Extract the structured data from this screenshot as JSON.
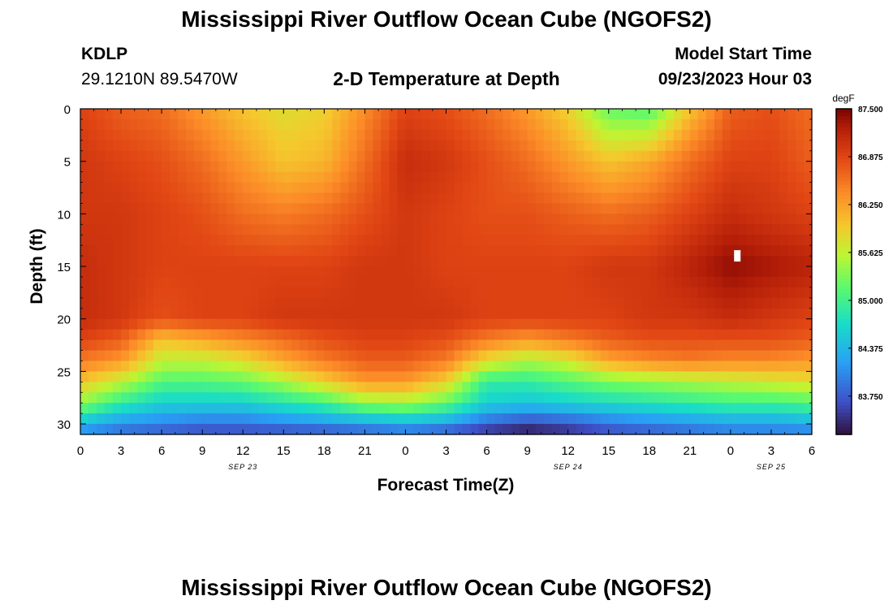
{
  "page": {
    "title_top": "Mississippi River Outflow Ocean Cube (NGOFS2)",
    "title_bottom": "Mississippi River Outflow Ocean Cube (NGOFS2)",
    "station_id": "KDLP",
    "station_coords": "29.1210N  89.5470W",
    "subtitle": "2-D Temperature at Depth",
    "model_start_label": "Model Start Time",
    "model_start_value": "09/23/2023 Hour 03"
  },
  "chart_data": {
    "type": "heatmap",
    "title": "2-D Temperature at Depth",
    "xlabel": "Forecast Time(Z)",
    "ylabel": "Depth (ft)",
    "x_range_hours": [
      0,
      54
    ],
    "y_range_ft": [
      0,
      31
    ],
    "x_ticks": [
      {
        "hour": 0,
        "label": "0"
      },
      {
        "hour": 3,
        "label": "3"
      },
      {
        "hour": 6,
        "label": "6"
      },
      {
        "hour": 9,
        "label": "9"
      },
      {
        "hour": 12,
        "label": "12"
      },
      {
        "hour": 15,
        "label": "15"
      },
      {
        "hour": 18,
        "label": "18"
      },
      {
        "hour": 21,
        "label": "21"
      },
      {
        "hour": 24,
        "label": "0"
      },
      {
        "hour": 27,
        "label": "3"
      },
      {
        "hour": 30,
        "label": "6"
      },
      {
        "hour": 33,
        "label": "9"
      },
      {
        "hour": 36,
        "label": "12"
      },
      {
        "hour": 39,
        "label": "15"
      },
      {
        "hour": 42,
        "label": "18"
      },
      {
        "hour": 45,
        "label": "21"
      },
      {
        "hour": 48,
        "label": "0"
      },
      {
        "hour": 51,
        "label": "3"
      },
      {
        "hour": 54,
        "label": "6"
      }
    ],
    "date_labels": [
      {
        "hour": 12,
        "label": "SEP 23"
      },
      {
        "hour": 36,
        "label": "SEP 24"
      },
      {
        "hour": 51,
        "label": "SEP 25"
      }
    ],
    "y_ticks": [
      0,
      5,
      10,
      15,
      20,
      25,
      30
    ],
    "colorbar": {
      "unit": "degF",
      "min": 83.25,
      "max": 87.5,
      "tick_values": [
        87.5,
        86.875,
        86.25,
        85.625,
        85.0,
        84.375,
        83.75
      ],
      "tick_labels": [
        "87.500",
        "86.875",
        "86.250",
        "85.625",
        "85.000",
        "84.375",
        "83.750"
      ]
    },
    "grid_hours": [
      0,
      3,
      6,
      9,
      12,
      15,
      18,
      21,
      24,
      27,
      30,
      33,
      36,
      39,
      42,
      45,
      48,
      51,
      54
    ],
    "grid_depths": [
      0,
      5,
      10,
      15,
      20,
      22,
      24,
      26,
      28,
      30,
      31
    ],
    "values_degF": [
      [
        86.9,
        86.7,
        86.6,
        86.3,
        86.0,
        85.8,
        85.9,
        86.4,
        86.9,
        86.8,
        86.6,
        86.3,
        85.9,
        85.2,
        85.1,
        86.0,
        86.7,
        86.8,
        86.6
      ],
      [
        87.0,
        86.9,
        86.8,
        86.6,
        86.3,
        86.0,
        86.1,
        86.6,
        87.1,
        87.0,
        86.8,
        86.6,
        86.3,
        86.0,
        86.2,
        86.6,
        86.9,
        86.9,
        86.7
      ],
      [
        87.0,
        87.0,
        86.9,
        86.8,
        86.6,
        86.5,
        86.6,
        86.8,
        87.0,
        86.9,
        86.8,
        86.8,
        86.7,
        86.6,
        86.7,
        86.9,
        87.1,
        87.0,
        86.9
      ],
      [
        87.1,
        87.0,
        86.9,
        86.9,
        86.9,
        86.9,
        86.9,
        87.0,
        87.0,
        86.9,
        86.9,
        86.9,
        86.9,
        87.0,
        87.0,
        87.2,
        87.4,
        87.3,
        87.2
      ],
      [
        87.1,
        87.0,
        86.8,
        86.9,
        86.9,
        87.0,
        87.0,
        87.0,
        87.0,
        87.0,
        86.9,
        86.9,
        86.9,
        86.9,
        87.0,
        87.0,
        87.1,
        87.0,
        86.9
      ],
      [
        86.9,
        86.7,
        86.0,
        86.2,
        86.4,
        86.6,
        86.8,
        86.9,
        86.9,
        86.8,
        86.5,
        86.3,
        86.5,
        86.7,
        86.8,
        86.8,
        86.8,
        86.8,
        86.7
      ],
      [
        86.5,
        86.3,
        85.6,
        85.6,
        85.8,
        86.2,
        86.5,
        86.7,
        86.7,
        86.5,
        85.8,
        85.5,
        85.7,
        86.2,
        86.4,
        86.5,
        86.4,
        86.4,
        86.3
      ],
      [
        86.0,
        85.6,
        85.1,
        85.1,
        85.2,
        85.5,
        85.9,
        86.3,
        86.3,
        85.9,
        84.9,
        84.9,
        85.1,
        85.3,
        85.4,
        85.5,
        85.6,
        85.7,
        85.8
      ],
      [
        85.4,
        84.9,
        84.6,
        84.6,
        84.6,
        84.8,
        85.0,
        85.4,
        85.5,
        85.2,
        84.6,
        84.5,
        84.6,
        84.7,
        84.8,
        84.9,
        85.0,
        85.0,
        85.1
      ],
      [
        84.4,
        84.1,
        84.0,
        83.9,
        83.9,
        84.0,
        84.1,
        84.2,
        84.3,
        84.2,
        83.8,
        83.6,
        83.7,
        83.9,
        84.0,
        84.1,
        84.2,
        84.2,
        84.3
      ],
      [
        84.0,
        83.8,
        83.7,
        83.6,
        83.6,
        83.6,
        83.6,
        83.7,
        83.8,
        83.6,
        83.4,
        83.25,
        83.4,
        83.6,
        83.7,
        83.8,
        83.9,
        83.9,
        83.9
      ]
    ],
    "marker": {
      "hour": 48.5,
      "depth_ft": 14.0
    }
  }
}
